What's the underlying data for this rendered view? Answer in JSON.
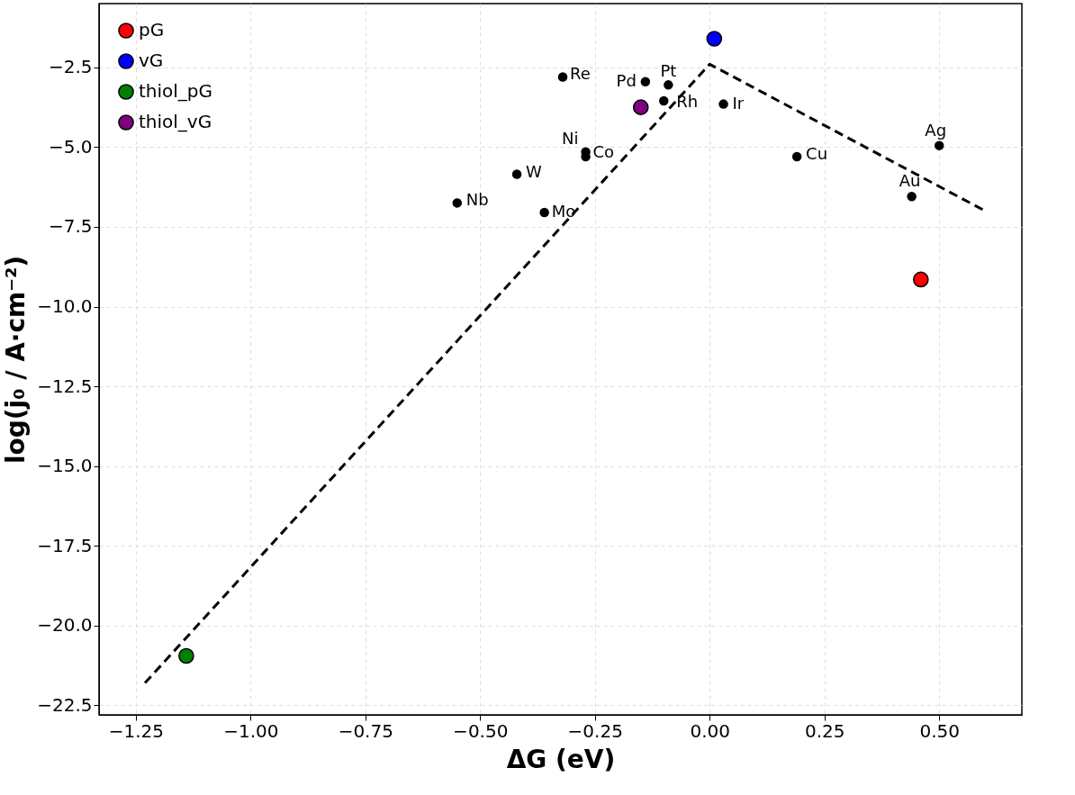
{
  "chart_data": {
    "type": "scatter",
    "xlabel": "ΔG (eV)",
    "ylabel": "log(j₀ / A·cm⁻²)",
    "xlim": [
      -1.33,
      0.68
    ],
    "ylim": [
      -22.8,
      -0.5
    ],
    "xticks": [
      {
        "value": -1.25,
        "label": "−1.25"
      },
      {
        "value": -1,
        "label": "−1.00"
      },
      {
        "value": -0.75,
        "label": "−0.75"
      },
      {
        "value": -0.5,
        "label": "−0.50"
      },
      {
        "value": -0.25,
        "label": "−0.25"
      },
      {
        "value": 0,
        "label": "0.00"
      },
      {
        "value": 0.25,
        "label": "0.25"
      },
      {
        "value": 0.5,
        "label": "0.50"
      }
    ],
    "yticks": [
      {
        "value": -2.5,
        "label": "−2.5"
      },
      {
        "value": -5,
        "label": "−5.0"
      },
      {
        "value": -7.5,
        "label": "−7.5"
      },
      {
        "value": -10,
        "label": "−10.0"
      },
      {
        "value": -12.5,
        "label": "−12.5"
      },
      {
        "value": -15,
        "label": "−15.0"
      },
      {
        "value": -17.5,
        "label": "−17.5"
      },
      {
        "value": -20,
        "label": "−20.0"
      },
      {
        "value": -22.5,
        "label": "−22.5"
      }
    ],
    "grid": true,
    "legend": "top left",
    "marker": "circle",
    "series": [
      {
        "type": "line",
        "color": "#000000",
        "line_style": "dashed",
        "marker": "none",
        "x": [
          -1.23,
          0,
          0.6
        ],
        "values": [
          -21.8,
          -2.4,
          -7.0
        ]
      },
      {
        "color": "#000000",
        "x": [
          -0.32,
          -0.14,
          -0.09,
          -0.1,
          0.03,
          -0.27,
          -0.27,
          -0.42,
          -0.55,
          -0.36,
          0.19,
          0.44,
          0.5
        ],
        "values": [
          -2.8,
          -2.95,
          -3.05,
          -3.55,
          -3.65,
          -5.15,
          -5.3,
          -5.85,
          -6.75,
          -7.05,
          -5.3,
          -6.55,
          -4.95
        ]
      },
      {
        "name": "pG",
        "color": "#ff0000",
        "x": [
          0.46
        ],
        "values": [
          -9.15
        ]
      },
      {
        "name": "vG",
        "color": "#0000ff",
        "x": [
          0.01
        ],
        "values": [
          -1.6
        ]
      },
      {
        "name": "thiol_pG",
        "color": "#008000",
        "x": [
          -1.14
        ],
        "values": [
          -20.95
        ]
      },
      {
        "name": "thiol_vG",
        "color": "#800080",
        "x": [
          -0.15
        ],
        "values": [
          -3.75
        ]
      }
    ],
    "annotations": [
      {
        "text": "Re",
        "x": -0.32,
        "y": -2.8
      },
      {
        "text": "Pd",
        "x": -0.14,
        "y": -2.95
      },
      {
        "text": "Pt",
        "x": -0.09,
        "y": -3.05
      },
      {
        "text": "Rh",
        "x": -0.1,
        "y": -3.55
      },
      {
        "text": "Ir",
        "x": 0.03,
        "y": -3.65
      },
      {
        "text": "Ni",
        "x": -0.27,
        "y": -5.15
      },
      {
        "text": "Co",
        "x": -0.27,
        "y": -5.3
      },
      {
        "text": "W",
        "x": -0.42,
        "y": -5.85
      },
      {
        "text": "Nb",
        "x": -0.55,
        "y": -6.75
      },
      {
        "text": "Mo",
        "x": -0.36,
        "y": -7.05
      },
      {
        "text": "Cu",
        "x": 0.19,
        "y": -5.3
      },
      {
        "text": "Au",
        "x": 0.44,
        "y": -6.55
      },
      {
        "text": "Ag",
        "x": 0.5,
        "y": -4.95
      }
    ]
  }
}
